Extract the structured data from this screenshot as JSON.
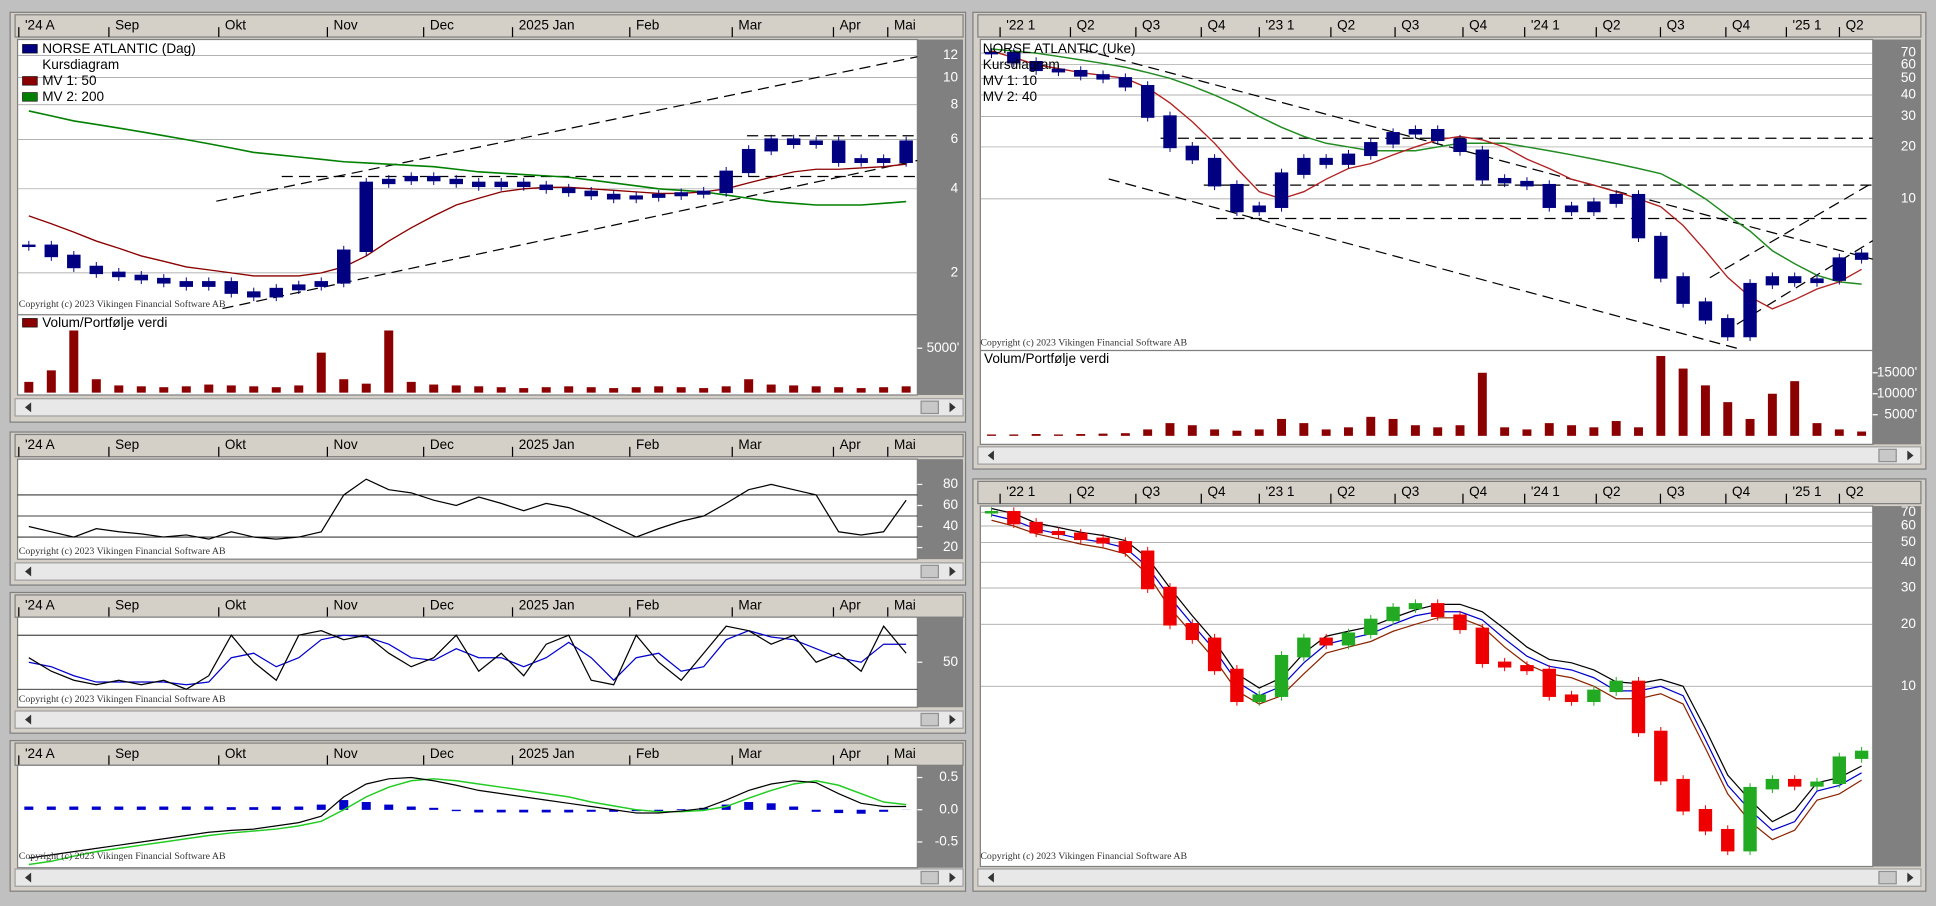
{
  "copyright": "Copyright (c) 2023 Vikingen Financial Software AB",
  "left": {
    "time_labels": [
      "'24 A",
      "Sep",
      "Okt",
      "Nov",
      "Dec",
      "2025 Jan",
      "Feb",
      "Mar",
      "Apr",
      "Mai"
    ],
    "price": {
      "subtitle": "Kursdiagram",
      "log_scale": true,
      "grid": true,
      "ylim": [
        1.49,
        13.7
      ],
      "yticks": [
        2,
        4,
        6,
        8,
        10,
        12
      ],
      "series": [
        {
          "name": "NORSE ATLANTIC (Dag)",
          "color": "#000080",
          "values": [
            2.5,
            2.3,
            2.1,
            2.0,
            1.95,
            1.9,
            1.85,
            1.8,
            1.85,
            1.7,
            1.65,
            1.75,
            1.8,
            1.85,
            2.4,
            4.2,
            4.3,
            4.4,
            4.3,
            4.2,
            4.1,
            4.2,
            4.1,
            4.0,
            3.9,
            3.8,
            3.7,
            3.75,
            3.8,
            3.85,
            3.9,
            4.6,
            5.5,
            6.0,
            5.8,
            5.9,
            5.0,
            5.1,
            5.0,
            5.9
          ]
        },
        {
          "name": "MV 1: 50",
          "color": "#8b0000",
          "values": [
            3.2,
            3.0,
            2.8,
            2.6,
            2.45,
            2.3,
            2.2,
            2.1,
            2.05,
            2.0,
            1.95,
            1.95,
            1.95,
            2.0,
            2.1,
            2.3,
            2.6,
            2.9,
            3.2,
            3.5,
            3.7,
            3.9,
            4.0,
            4.05,
            4.05,
            4.0,
            3.95,
            3.9,
            3.85,
            3.85,
            3.9,
            4.0,
            4.2,
            4.4,
            4.6,
            4.7,
            4.7,
            4.75,
            4.8,
            4.9
          ]
        },
        {
          "name": "MV 2: 200",
          "color": "#008000",
          "values": [
            7.6,
            7.3,
            7.0,
            6.8,
            6.6,
            6.4,
            6.2,
            6.0,
            5.8,
            5.6,
            5.4,
            5.3,
            5.2,
            5.1,
            5.0,
            4.95,
            4.9,
            4.85,
            4.8,
            4.7,
            4.6,
            4.55,
            4.5,
            4.45,
            4.4,
            4.3,
            4.2,
            4.1,
            4.0,
            3.95,
            3.9,
            3.8,
            3.7,
            3.6,
            3.55,
            3.5,
            3.5,
            3.5,
            3.55,
            3.6
          ]
        }
      ]
    },
    "volume": {
      "title": "Volum/Portfølje verdi",
      "color": "#8b0000",
      "ylim": [
        0,
        7800
      ],
      "yticks": [
        {
          "value": 5000,
          "label": "5000'"
        }
      ],
      "values": [
        1200,
        2500,
        7000,
        1500,
        800,
        700,
        600,
        700,
        900,
        800,
        700,
        600,
        800,
        4500,
        1500,
        1000,
        7000,
        1200,
        900,
        800,
        700,
        600,
        500,
        600,
        700,
        600,
        500,
        600,
        700,
        600,
        500,
        700,
        1500,
        900,
        800,
        700,
        600,
        500,
        600,
        700
      ]
    },
    "rsi": {
      "color": "#000000",
      "ylim": [
        9,
        104
      ],
      "yticks": [
        20,
        40,
        60,
        80
      ],
      "levels": [
        30,
        50,
        70
      ],
      "values": [
        40,
        35,
        30,
        38,
        35,
        33,
        30,
        32,
        28,
        35,
        30,
        28,
        30,
        35,
        70,
        85,
        75,
        72,
        65,
        60,
        68,
        62,
        55,
        62,
        58,
        50,
        40,
        30,
        38,
        45,
        50,
        62,
        75,
        80,
        75,
        70,
        35,
        32,
        35,
        65
      ]
    },
    "stochastic": {
      "ylim": [
        0,
        100
      ],
      "yticks": [
        50
      ],
      "levels": [
        20,
        80
      ],
      "series": [
        {
          "color": "#000000",
          "values": [
            55,
            40,
            30,
            25,
            30,
            25,
            30,
            20,
            35,
            80,
            50,
            30,
            80,
            85,
            75,
            80,
            60,
            45,
            55,
            80,
            40,
            60,
            35,
            70,
            80,
            30,
            25,
            80,
            50,
            30,
            60,
            90,
            85,
            70,
            80,
            50,
            60,
            40,
            90,
            60
          ]
        },
        {
          "color": "#0000cc",
          "values": [
            50,
            45,
            35,
            28,
            28,
            28,
            28,
            25,
            28,
            55,
            60,
            45,
            55,
            75,
            80,
            78,
            70,
            55,
            52,
            65,
            55,
            55,
            45,
            55,
            72,
            55,
            30,
            55,
            60,
            40,
            45,
            75,
            85,
            78,
            75,
            65,
            55,
            50,
            70,
            70
          ]
        }
      ]
    },
    "macd": {
      "ylim": [
        -0.9,
        0.69
      ],
      "yticks": [
        0.5,
        {
          "value": 0,
          "label": "0.0"
        },
        -0.5
      ],
      "series": [
        {
          "color": "#000000",
          "values": [
            -0.75,
            -0.7,
            -0.65,
            -0.6,
            -0.55,
            -0.5,
            -0.45,
            -0.4,
            -0.35,
            -0.32,
            -0.3,
            -0.25,
            -0.2,
            -0.1,
            0.2,
            0.4,
            0.48,
            0.5,
            0.45,
            0.38,
            0.3,
            0.25,
            0.2,
            0.15,
            0.1,
            0.05,
            0.0,
            -0.05,
            -0.05,
            -0.02,
            0.02,
            0.15,
            0.3,
            0.4,
            0.45,
            0.42,
            0.25,
            0.1,
            0.05,
            0.05
          ]
        },
        {
          "color": "#22cc22",
          "values": [
            -0.85,
            -0.8,
            -0.72,
            -0.65,
            -0.6,
            -0.55,
            -0.5,
            -0.45,
            -0.4,
            -0.36,
            -0.33,
            -0.3,
            -0.25,
            -0.18,
            0.0,
            0.2,
            0.35,
            0.45,
            0.48,
            0.45,
            0.4,
            0.35,
            0.3,
            0.25,
            0.2,
            0.12,
            0.06,
            0.0,
            -0.03,
            -0.03,
            -0.01,
            0.05,
            0.18,
            0.3,
            0.4,
            0.45,
            0.38,
            0.25,
            0.12,
            0.08
          ]
        }
      ],
      "histogram": {
        "color": "#0000cc",
        "values": [
          0.05,
          0.05,
          0.05,
          0.05,
          0.05,
          0.05,
          0.05,
          0.05,
          0.05,
          0.04,
          0.04,
          0.05,
          0.05,
          0.08,
          0.15,
          0.12,
          0.08,
          0.05,
          0.03,
          -0.02,
          -0.04,
          -0.04,
          -0.04,
          -0.04,
          -0.04,
          -0.03,
          -0.03,
          -0.02,
          -0.02,
          0.01,
          0.03,
          0.08,
          0.12,
          0.1,
          0.05,
          -0.03,
          -0.05,
          -0.06,
          -0.03,
          0.0
        ]
      }
    }
  },
  "right": {
    "time_labels": [
      "'22 1",
      "Q2",
      "Q3",
      "Q4",
      "'23 1",
      "Q2",
      "Q3",
      "Q4",
      "'24 1",
      "Q2",
      "Q3",
      "Q4",
      "'25 1",
      "Q2"
    ],
    "price": {
      "subtitle": "Kursdiagram",
      "log_scale": true,
      "grid": true,
      "ylim": [
        1.34,
        84
      ],
      "yticks": [
        10,
        20,
        30,
        40,
        50,
        60,
        70
      ],
      "series": [
        {
          "name": "NORSE ATLANTIC (Uke)",
          "color": "#000080",
          "values": [
            70,
            62,
            56,
            55,
            52,
            50,
            45,
            30,
            20,
            17,
            12,
            8.5,
            9,
            14,
            17,
            16,
            18,
            21,
            24,
            25,
            22,
            19,
            13,
            12.5,
            12,
            9,
            8.5,
            9.5,
            10.5,
            6,
            3.5,
            2.5,
            2,
            1.6,
            3.2,
            3.5,
            3.3,
            3.4,
            4.5,
            4.8
          ]
        },
        {
          "name": "MV 1: 10",
          "color": "#b22222",
          "values": [
            72,
            66,
            60,
            57,
            54,
            52,
            50,
            44,
            36,
            28,
            21,
            15,
            11,
            10,
            11,
            13,
            15,
            16,
            18,
            20,
            22,
            23,
            22,
            20,
            17,
            15,
            13,
            12,
            11,
            10,
            9,
            7,
            5,
            3.5,
            2.7,
            2.3,
            2.6,
            3.0,
            3.3,
            3.9
          ]
        },
        {
          "name": "MV 2: 40",
          "color": "#228b22",
          "values": [
            74,
            72,
            70,
            67,
            64,
            61,
            58,
            54,
            50,
            45,
            40,
            35,
            30,
            26,
            23,
            21,
            20,
            19,
            19,
            19,
            20,
            21,
            21,
            21,
            20,
            19,
            18,
            17,
            16,
            15,
            14,
            12,
            10,
            8,
            6.5,
            5,
            4.2,
            3.6,
            3.3,
            3.2
          ]
        }
      ]
    },
    "volume": {
      "title": "Volum/Portfølje verdi",
      "color": "#8b0000",
      "ylim": [
        0,
        20000
      ],
      "yticks": [
        {
          "value": 5000,
          "label": "5000'"
        },
        {
          "value": 10000,
          "label": "10000'"
        },
        {
          "value": 15000,
          "label": "15000'"
        }
      ],
      "values": [
        300,
        300,
        400,
        300,
        400,
        500,
        600,
        1500,
        3000,
        2500,
        1500,
        1200,
        1500,
        4000,
        3000,
        1500,
        2000,
        4500,
        4000,
        2500,
        2000,
        2500,
        15000,
        2000,
        1500,
        3000,
        2500,
        2000,
        3500,
        2000,
        19000,
        16000,
        12000,
        8000,
        4000,
        10000,
        13000,
        3000,
        1500,
        1000
      ]
    },
    "bands": {
      "log_scale": true,
      "grid": true,
      "ylim": [
        1.37,
        75
      ],
      "yticks": [
        10,
        20,
        30,
        40,
        50,
        60,
        70
      ],
      "up_color": "#22aa22",
      "down_color": "#ee0000",
      "series": [
        {
          "color": "#0000cc",
          "values": [
            68,
            64,
            58,
            55,
            52,
            50,
            47,
            38,
            27,
            20,
            15,
            10.5,
            9,
            10,
            13,
            16,
            17,
            18,
            20,
            22,
            23,
            23,
            21,
            17,
            14,
            12.5,
            12,
            11,
            9.5,
            9.5,
            10,
            9,
            5.5,
            3.3,
            2.5,
            2,
            2.2,
            3.1,
            3.3,
            3.8
          ]
        },
        {
          "color": "#000000",
          "values": [
            73,
            69,
            62,
            59,
            56,
            54,
            51,
            42,
            30,
            22,
            16.5,
            11.5,
            9.8,
            11,
            14.5,
            17.5,
            18.5,
            19.5,
            21.5,
            23.5,
            25,
            25,
            23,
            19,
            15.5,
            13.5,
            13,
            12,
            10.5,
            10.3,
            10.8,
            10,
            6.2,
            3.7,
            2.8,
            2.2,
            2.5,
            3.4,
            3.6,
            4.1
          ]
        },
        {
          "color": "#8b2500",
          "values": [
            64,
            60,
            55,
            52,
            49,
            47,
            44,
            35,
            24,
            18,
            13.5,
            9.5,
            8.2,
            9,
            11.5,
            14.5,
            15.5,
            16.5,
            18.5,
            20,
            21.5,
            21.5,
            19.5,
            15.5,
            12.8,
            11.5,
            11,
            10,
            8.7,
            8.7,
            9.2,
            8.2,
            5,
            3,
            2.2,
            1.8,
            2,
            2.8,
            3,
            3.5
          ]
        }
      ]
    }
  }
}
